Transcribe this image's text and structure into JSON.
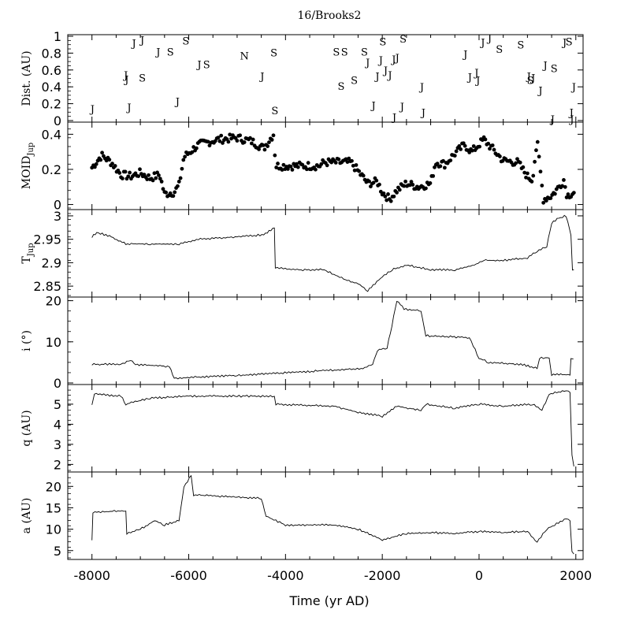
{
  "title": "16/Brooks2",
  "xlabel": "Time (yr AD)",
  "x_ticks": [
    "-8000",
    "-6000",
    "-4000",
    "-2000",
    "0",
    "2000"
  ],
  "chart_data": [
    {
      "type": "scatter",
      "name": "dist",
      "ylabel": "Dist. (AU)",
      "xlim": [
        -8500,
        2150
      ],
      "ylim": [
        0,
        1
      ],
      "yticks": [
        0,
        0.2,
        0.4,
        0.6,
        0.8,
        1
      ],
      "ytick_labels": [
        "0",
        "0.2",
        "0.4",
        "0.6",
        "0.8",
        "1"
      ],
      "marker": "letters",
      "points": [
        {
          "x": -7990,
          "y": 0.14,
          "label": "J"
        },
        {
          "x": -7300,
          "y": 0.54,
          "label": "J"
        },
        {
          "x": -7280,
          "y": 0.49,
          "label": "J"
        },
        {
          "x": -7230,
          "y": 0.16,
          "label": "J"
        },
        {
          "x": -7130,
          "y": 0.92,
          "label": "J"
        },
        {
          "x": -6960,
          "y": 0.96,
          "label": "J"
        },
        {
          "x": -6960,
          "y": 0.51,
          "label": "S"
        },
        {
          "x": -6630,
          "y": 0.82,
          "label": "J"
        },
        {
          "x": -6380,
          "y": 0.82,
          "label": "S"
        },
        {
          "x": -6230,
          "y": 0.23,
          "label": "J"
        },
        {
          "x": -6060,
          "y": 0.95,
          "label": "S"
        },
        {
          "x": -5780,
          "y": 0.67,
          "label": "J"
        },
        {
          "x": -5630,
          "y": 0.67,
          "label": "S"
        },
        {
          "x": -4850,
          "y": 0.77,
          "label": "N"
        },
        {
          "x": -4480,
          "y": 0.53,
          "label": "J"
        },
        {
          "x": -4240,
          "y": 0.81,
          "label": "S"
        },
        {
          "x": -4220,
          "y": 0.12,
          "label": "S"
        },
        {
          "x": -2950,
          "y": 0.82,
          "label": "S"
        },
        {
          "x": -2780,
          "y": 0.82,
          "label": "S"
        },
        {
          "x": -2850,
          "y": 0.41,
          "label": "S"
        },
        {
          "x": -2580,
          "y": 0.48,
          "label": "S"
        },
        {
          "x": -2370,
          "y": 0.82,
          "label": "S"
        },
        {
          "x": -2300,
          "y": 0.69,
          "label": "J"
        },
        {
          "x": -2180,
          "y": 0.18,
          "label": "J"
        },
        {
          "x": -2100,
          "y": 0.53,
          "label": "J"
        },
        {
          "x": -2030,
          "y": 0.72,
          "label": "J"
        },
        {
          "x": -1990,
          "y": 0.94,
          "label": "S"
        },
        {
          "x": -1930,
          "y": 0.6,
          "label": "J"
        },
        {
          "x": -1840,
          "y": 0.54,
          "label": "J"
        },
        {
          "x": -1760,
          "y": 0.73,
          "label": "J"
        },
        {
          "x": -1690,
          "y": 0.75,
          "label": "J"
        },
        {
          "x": -1750,
          "y": 0.04,
          "label": "J"
        },
        {
          "x": -1570,
          "y": 0.97,
          "label": "S"
        },
        {
          "x": -1590,
          "y": 0.17,
          "label": "J"
        },
        {
          "x": -1180,
          "y": 0.4,
          "label": "J"
        },
        {
          "x": -1150,
          "y": 0.1,
          "label": "J"
        },
        {
          "x": -280,
          "y": 0.79,
          "label": "J"
        },
        {
          "x": -190,
          "y": 0.52,
          "label": "J"
        },
        {
          "x": -50,
          "y": 0.57,
          "label": "J"
        },
        {
          "x": -20,
          "y": 0.48,
          "label": "J"
        },
        {
          "x": 80,
          "y": 0.93,
          "label": "J"
        },
        {
          "x": 220,
          "y": 0.98,
          "label": "J"
        },
        {
          "x": 420,
          "y": 0.85,
          "label": "S"
        },
        {
          "x": 860,
          "y": 0.9,
          "label": "S"
        },
        {
          "x": 1030,
          "y": 0.53,
          "label": "J"
        },
        {
          "x": 1060,
          "y": 0.48,
          "label": "S"
        },
        {
          "x": 1120,
          "y": 0.51,
          "label": "J"
        },
        {
          "x": 1270,
          "y": 0.36,
          "label": "J"
        },
        {
          "x": 1370,
          "y": 0.66,
          "label": "J"
        },
        {
          "x": 1550,
          "y": 0.62,
          "label": "S"
        },
        {
          "x": 1520,
          "y": 0.02,
          "label": "J"
        },
        {
          "x": 1770,
          "y": 0.93,
          "label": "J"
        },
        {
          "x": 1860,
          "y": 0.94,
          "label": "S"
        },
        {
          "x": 1960,
          "y": 0.4,
          "label": "J"
        },
        {
          "x": 1910,
          "y": 0.1,
          "label": "J"
        },
        {
          "x": 1920,
          "y": 0.02,
          "label": "J"
        }
      ]
    },
    {
      "type": "scatter",
      "name": "moid",
      "ylabel": "MOID_Jup",
      "ylabel_main": "MOID",
      "ylabel_sub": "Jup",
      "xlim": [
        -8500,
        2150
      ],
      "ylim": [
        -0.02,
        0.46
      ],
      "yticks": [
        0,
        0.2,
        0.4
      ],
      "ytick_labels": [
        "0",
        "0.2",
        "0.4"
      ],
      "marker": "dot",
      "profile": [
        {
          "x": -8000,
          "y": 0.21
        },
        {
          "x": -7800,
          "y": 0.28
        },
        {
          "x": -7600,
          "y": 0.24
        },
        {
          "x": -7400,
          "y": 0.17
        },
        {
          "x": -7200,
          "y": 0.16
        },
        {
          "x": -7000,
          "y": 0.18
        },
        {
          "x": -6800,
          "y": 0.15
        },
        {
          "x": -6600,
          "y": 0.17
        },
        {
          "x": -6500,
          "y": 0.06
        },
        {
          "x": -6300,
          "y": 0.07
        },
        {
          "x": -6200,
          "y": 0.11
        },
        {
          "x": -6100,
          "y": 0.27
        },
        {
          "x": -5800,
          "y": 0.34
        },
        {
          "x": -5400,
          "y": 0.37
        },
        {
          "x": -5000,
          "y": 0.38
        },
        {
          "x": -4700,
          "y": 0.36
        },
        {
          "x": -4450,
          "y": 0.32
        },
        {
          "x": -4250,
          "y": 0.4
        },
        {
          "x": -4200,
          "y": 0.22
        },
        {
          "x": -3300,
          "y": 0.22
        },
        {
          "x": -3200,
          "y": 0.24
        },
        {
          "x": -2650,
          "y": 0.24
        },
        {
          "x": -2500,
          "y": 0.19
        },
        {
          "x": -2300,
          "y": 0.12
        },
        {
          "x": -2100,
          "y": 0.13
        },
        {
          "x": -2000,
          "y": 0.07
        },
        {
          "x": -1850,
          "y": 0.03
        },
        {
          "x": -1700,
          "y": 0.08
        },
        {
          "x": -1500,
          "y": 0.12
        },
        {
          "x": -1250,
          "y": 0.1
        },
        {
          "x": -1000,
          "y": 0.12
        },
        {
          "x": -900,
          "y": 0.24
        },
        {
          "x": -700,
          "y": 0.23
        },
        {
          "x": -500,
          "y": 0.29
        },
        {
          "x": -300,
          "y": 0.34
        },
        {
          "x": -150,
          "y": 0.3
        },
        {
          "x": 100,
          "y": 0.37
        },
        {
          "x": 300,
          "y": 0.31
        },
        {
          "x": 500,
          "y": 0.25
        },
        {
          "x": 800,
          "y": 0.24
        },
        {
          "x": 1000,
          "y": 0.16
        },
        {
          "x": 1100,
          "y": 0.14
        },
        {
          "x": 1200,
          "y": 0.36
        },
        {
          "x": 1330,
          "y": 0.03
        },
        {
          "x": 1500,
          "y": 0.05
        },
        {
          "x": 1650,
          "y": 0.1
        },
        {
          "x": 1750,
          "y": 0.14
        },
        {
          "x": 1820,
          "y": 0.05
        },
        {
          "x": 1950,
          "y": 0.07
        }
      ]
    },
    {
      "type": "line",
      "name": "tjup",
      "ylabel": "T_Jup",
      "ylabel_main": "T",
      "ylabel_sub": "Jup",
      "xlim": [
        -8500,
        2150
      ],
      "ylim": [
        2.83,
        3.01
      ],
      "yticks": [
        2.85,
        2.9,
        2.95,
        3.0
      ],
      "ytick_labels": [
        "2.85",
        "2.9",
        "2.95",
        "3"
      ],
      "points": [
        {
          "x": -8000,
          "y": 2.955
        },
        {
          "x": -7900,
          "y": 2.965
        },
        {
          "x": -7600,
          "y": 2.955
        },
        {
          "x": -7300,
          "y": 2.94
        },
        {
          "x": -6800,
          "y": 2.94
        },
        {
          "x": -6200,
          "y": 2.94
        },
        {
          "x": -5800,
          "y": 2.95
        },
        {
          "x": -5000,
          "y": 2.955
        },
        {
          "x": -4450,
          "y": 2.96
        },
        {
          "x": -4230,
          "y": 2.975
        },
        {
          "x": -4210,
          "y": 2.89
        },
        {
          "x": -3800,
          "y": 2.885
        },
        {
          "x": -3200,
          "y": 2.885
        },
        {
          "x": -2800,
          "y": 2.865
        },
        {
          "x": -2500,
          "y": 2.855
        },
        {
          "x": -2300,
          "y": 2.84
        },
        {
          "x": -2000,
          "y": 2.87
        },
        {
          "x": -1800,
          "y": 2.885
        },
        {
          "x": -1500,
          "y": 2.895
        },
        {
          "x": -1000,
          "y": 2.885
        },
        {
          "x": -500,
          "y": 2.885
        },
        {
          "x": -100,
          "y": 2.895
        },
        {
          "x": 100,
          "y": 2.905
        },
        {
          "x": 500,
          "y": 2.905
        },
        {
          "x": 1000,
          "y": 2.91
        },
        {
          "x": 1200,
          "y": 2.925
        },
        {
          "x": 1400,
          "y": 2.935
        },
        {
          "x": 1500,
          "y": 2.985
        },
        {
          "x": 1650,
          "y": 2.995
        },
        {
          "x": 1800,
          "y": 3.0
        },
        {
          "x": 1900,
          "y": 2.96
        },
        {
          "x": 1930,
          "y": 2.885
        },
        {
          "x": 1960,
          "y": 2.885
        }
      ]
    },
    {
      "type": "line",
      "name": "incl",
      "ylabel": "i (°)",
      "xlim": [
        -8500,
        2150
      ],
      "ylim": [
        0,
        20.5
      ],
      "yticks": [
        0,
        10,
        20
      ],
      "ytick_labels": [
        "0",
        "10",
        "20"
      ],
      "points": [
        {
          "x": -8000,
          "y": 4.5
        },
        {
          "x": -7400,
          "y": 4.6
        },
        {
          "x": -7200,
          "y": 5.5
        },
        {
          "x": -7100,
          "y": 4.5
        },
        {
          "x": -6400,
          "y": 4.0
        },
        {
          "x": -6300,
          "y": 1.2
        },
        {
          "x": -5000,
          "y": 1.8
        },
        {
          "x": -3500,
          "y": 2.8
        },
        {
          "x": -2400,
          "y": 3.5
        },
        {
          "x": -2200,
          "y": 4.5
        },
        {
          "x": -2100,
          "y": 8.0
        },
        {
          "x": -1900,
          "y": 8.5
        },
        {
          "x": -1800,
          "y": 14.0
        },
        {
          "x": -1700,
          "y": 20.0
        },
        {
          "x": -1550,
          "y": 18.0
        },
        {
          "x": -1200,
          "y": 17.5
        },
        {
          "x": -1100,
          "y": 11.5
        },
        {
          "x": -200,
          "y": 11.0
        },
        {
          "x": 0,
          "y": 6.0
        },
        {
          "x": 200,
          "y": 5.0
        },
        {
          "x": 900,
          "y": 4.5
        },
        {
          "x": 1200,
          "y": 3.5
        },
        {
          "x": 1250,
          "y": 6.0
        },
        {
          "x": 1450,
          "y": 6.2
        },
        {
          "x": 1500,
          "y": 2.0
        },
        {
          "x": 1800,
          "y": 2.0
        },
        {
          "x": 1880,
          "y": 1.9
        },
        {
          "x": 1900,
          "y": 6.0
        },
        {
          "x": 1950,
          "y": 5.8
        }
      ]
    },
    {
      "type": "line",
      "name": "q",
      "ylabel": "q (AU)",
      "xlim": [
        -8500,
        2150
      ],
      "ylim": [
        1.7,
        5.9
      ],
      "yticks": [
        2,
        3,
        4,
        5
      ],
      "ytick_labels": [
        "2",
        "3",
        "4",
        "5"
      ],
      "points": [
        {
          "x": -8000,
          "y": 5.0
        },
        {
          "x": -7950,
          "y": 5.5
        },
        {
          "x": -7400,
          "y": 5.4
        },
        {
          "x": -7300,
          "y": 5.0
        },
        {
          "x": -6800,
          "y": 5.3
        },
        {
          "x": -6000,
          "y": 5.4
        },
        {
          "x": -5000,
          "y": 5.4
        },
        {
          "x": -4230,
          "y": 5.4
        },
        {
          "x": -4200,
          "y": 5.0
        },
        {
          "x": -3000,
          "y": 4.9
        },
        {
          "x": -2500,
          "y": 4.6
        },
        {
          "x": -2000,
          "y": 4.4
        },
        {
          "x": -1700,
          "y": 4.9
        },
        {
          "x": -1200,
          "y": 4.7
        },
        {
          "x": -1100,
          "y": 5.0
        },
        {
          "x": -500,
          "y": 4.8
        },
        {
          "x": 0,
          "y": 5.0
        },
        {
          "x": 500,
          "y": 4.9
        },
        {
          "x": 1100,
          "y": 5.0
        },
        {
          "x": 1300,
          "y": 4.7
        },
        {
          "x": 1450,
          "y": 5.5
        },
        {
          "x": 1800,
          "y": 5.7
        },
        {
          "x": 1880,
          "y": 5.6
        },
        {
          "x": 1920,
          "y": 2.5
        },
        {
          "x": 1960,
          "y": 1.9
        }
      ]
    },
    {
      "type": "line",
      "name": "a",
      "ylabel": "a (AU)",
      "xlim": [
        -8500,
        2150
      ],
      "ylim": [
        3.3,
        23.0
      ],
      "yticks": [
        5,
        10,
        15,
        20
      ],
      "ytick_labels": [
        "5",
        "10",
        "15",
        "20"
      ],
      "points": [
        {
          "x": -8000,
          "y": 7.5
        },
        {
          "x": -7980,
          "y": 14.0
        },
        {
          "x": -7300,
          "y": 14.3
        },
        {
          "x": -7280,
          "y": 9.0
        },
        {
          "x": -7000,
          "y": 10.0
        },
        {
          "x": -6700,
          "y": 12.0
        },
        {
          "x": -6500,
          "y": 11.0
        },
        {
          "x": -6200,
          "y": 12.0
        },
        {
          "x": -6100,
          "y": 20.0
        },
        {
          "x": -5950,
          "y": 22.5
        },
        {
          "x": -5900,
          "y": 18.0
        },
        {
          "x": -5000,
          "y": 17.5
        },
        {
          "x": -4500,
          "y": 17.2
        },
        {
          "x": -4400,
          "y": 13.0
        },
        {
          "x": -4000,
          "y": 11.0
        },
        {
          "x": -3000,
          "y": 11.0
        },
        {
          "x": -2500,
          "y": 10.0
        },
        {
          "x": -2000,
          "y": 7.5
        },
        {
          "x": -1500,
          "y": 9.0
        },
        {
          "x": -1000,
          "y": 9.2
        },
        {
          "x": -500,
          "y": 9.0
        },
        {
          "x": 0,
          "y": 9.5
        },
        {
          "x": 500,
          "y": 9.2
        },
        {
          "x": 1000,
          "y": 9.5
        },
        {
          "x": 1200,
          "y": 7.0
        },
        {
          "x": 1400,
          "y": 10.0
        },
        {
          "x": 1800,
          "y": 12.5
        },
        {
          "x": 1880,
          "y": 12.0
        },
        {
          "x": 1920,
          "y": 5.0
        },
        {
          "x": 1960,
          "y": 4.2
        }
      ]
    }
  ]
}
